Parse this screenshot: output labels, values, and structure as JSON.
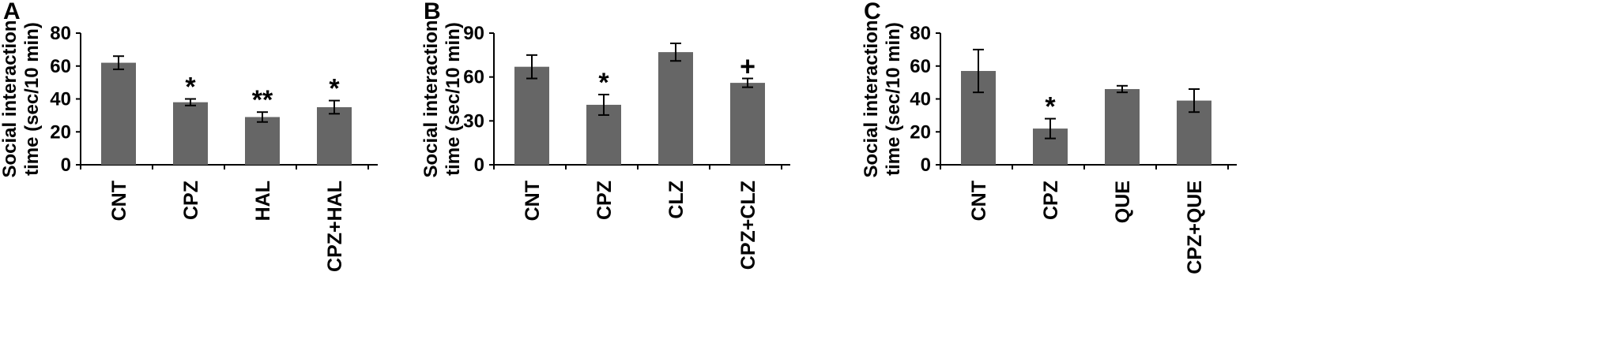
{
  "chart_data": [
    {
      "type": "bar",
      "panel": "A",
      "ylabel_line1": "Social interaction",
      "ylabel_line2": "time (sec/10 min)",
      "ylim": [
        0,
        80
      ],
      "yticks": [
        0,
        20,
        40,
        60,
        80
      ],
      "categories": [
        "CNT",
        "CPZ",
        "HAL",
        "CPZ+HAL"
      ],
      "values": [
        62,
        38,
        29,
        35
      ],
      "errors": [
        4,
        2,
        3,
        4
      ],
      "significance": [
        "",
        "*",
        "**",
        "*"
      ],
      "bar_color": "#666666"
    },
    {
      "type": "bar",
      "panel": "B",
      "ylabel_line1": "Social interaction",
      "ylabel_line2": "time (sec/10 min)",
      "ylim": [
        0,
        90
      ],
      "yticks": [
        0,
        30,
        60,
        90
      ],
      "categories": [
        "CNT",
        "CPZ",
        "CLZ",
        "CPZ+CLZ"
      ],
      "values": [
        67,
        41,
        77,
        56
      ],
      "errors": [
        8,
        7,
        6,
        3
      ],
      "significance": [
        "",
        "*",
        "",
        "+"
      ],
      "bar_color": "#666666"
    },
    {
      "type": "bar",
      "panel": "C",
      "ylabel_line1": "Social interaction",
      "ylabel_line2": "time (sec/10 min)",
      "ylim": [
        0,
        80
      ],
      "yticks": [
        0,
        20,
        40,
        60,
        80
      ],
      "categories": [
        "CNT",
        "CPZ",
        "QUE",
        "CPZ+QUE"
      ],
      "values": [
        57,
        22,
        46,
        39
      ],
      "errors": [
        13,
        6,
        2,
        7
      ],
      "significance": [
        "",
        "*",
        "",
        ""
      ],
      "bar_color": "#666666"
    }
  ]
}
